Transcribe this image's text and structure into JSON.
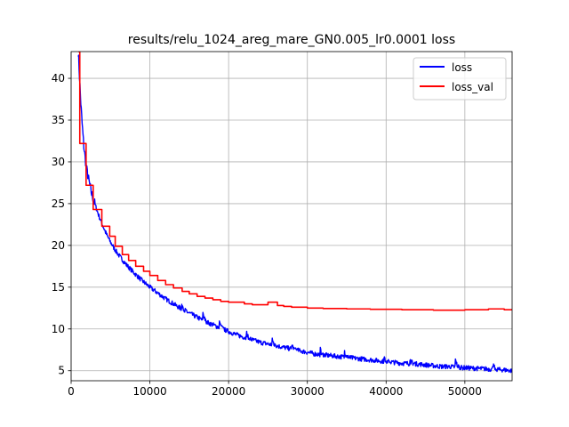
{
  "chart_data": {
    "type": "line",
    "title": "results/relu_1024_areg_mare_GN0.005_lr0.0001 loss",
    "xlabel": "",
    "ylabel": "",
    "xlim": [
      0,
      56000
    ],
    "ylim": [
      3.8,
      43.2
    ],
    "xticks": [
      0,
      10000,
      20000,
      30000,
      40000,
      50000
    ],
    "yticks": [
      5,
      10,
      15,
      20,
      25,
      30,
      35,
      40
    ],
    "grid": true,
    "legend_position": "upper right",
    "series": [
      {
        "name": "loss",
        "color": "#0000ff",
        "x": [
          900,
          1000,
          1200,
          1400,
          1600,
          1800,
          2000,
          2300,
          2600,
          3000,
          3500,
          4000,
          4500,
          5000,
          5500,
          6000,
          6500,
          7000,
          8000,
          9000,
          10000,
          11000,
          12000,
          13000,
          14000,
          15000,
          16000,
          17000,
          18000,
          19000,
          20000,
          21000,
          22000,
          23000,
          24000,
          25000,
          26000,
          27000,
          28000,
          29000,
          30000,
          31000,
          32000,
          33000,
          34000,
          35000,
          36000,
          37000,
          38000,
          39000,
          40000,
          41000,
          42000,
          43000,
          44000,
          45000,
          46000,
          47000,
          48000,
          49000,
          50000,
          51000,
          52000,
          53000,
          54000,
          55000,
          56000
        ],
        "y": [
          43.2,
          41.5,
          37.5,
          34.5,
          32.0,
          30.3,
          29.0,
          27.5,
          26.2,
          25.0,
          23.6,
          22.4,
          21.3,
          20.4,
          19.6,
          18.9,
          18.3,
          17.7,
          16.7,
          15.8,
          15.0,
          14.3,
          13.6,
          13.0,
          12.4,
          11.9,
          11.4,
          10.9,
          10.5,
          10.1,
          9.7,
          9.3,
          9.0,
          8.7,
          8.4,
          8.2,
          8.0,
          7.8,
          7.6,
          7.4,
          7.2,
          7.0,
          6.9,
          6.8,
          6.7,
          6.6,
          6.5,
          6.4,
          6.3,
          6.2,
          6.1,
          6.0,
          5.9,
          5.85,
          5.8,
          5.7,
          5.6,
          5.5,
          5.5,
          5.4,
          5.35,
          5.3,
          5.25,
          5.2,
          5.15,
          5.1,
          5.0
        ],
        "spikes": [
          {
            "x": 14000,
            "height": 1.0
          },
          {
            "x": 16700,
            "height": 1.3
          },
          {
            "x": 18800,
            "height": 1.0
          },
          {
            "x": 22200,
            "height": 1.1
          },
          {
            "x": 25500,
            "height": 1.0
          },
          {
            "x": 28000,
            "height": 0.7
          },
          {
            "x": 31600,
            "height": 0.9
          },
          {
            "x": 34700,
            "height": 1.0
          },
          {
            "x": 39700,
            "height": 0.8
          },
          {
            "x": 43000,
            "height": 0.9
          },
          {
            "x": 48800,
            "height": 1.1
          },
          {
            "x": 53500,
            "height": 1.0
          }
        ]
      },
      {
        "name": "loss_val",
        "color": "#ff0000",
        "x": [
          900,
          1100,
          1100,
          1900,
          1900,
          2300,
          2300,
          2800,
          2800,
          3100,
          3100,
          3900,
          3900,
          4900,
          4900,
          5600,
          5600,
          6500,
          6500,
          7300,
          7300,
          8200,
          8200,
          9200,
          9200,
          10000,
          10000,
          11000,
          11000,
          12000,
          12000,
          13000,
          13000,
          14100,
          14100,
          15000,
          15000,
          16000,
          16000,
          17000,
          17000,
          18000,
          18000,
          19000,
          19000,
          20000,
          20000,
          22000,
          22000,
          23000,
          23000,
          25000,
          25000,
          26200,
          26200,
          27000,
          27000,
          28000,
          28000,
          30000,
          30000,
          32000,
          32000,
          35000,
          35000,
          38000,
          38000,
          42000,
          42000,
          46000,
          46000,
          50000,
          50000,
          53000,
          53000,
          55000,
          55000,
          56000
        ],
        "y": [
          43.2,
          43.2,
          32.2,
          32.2,
          27.2,
          27.2,
          27.2,
          27.2,
          24.3,
          24.3,
          24.3,
          24.3,
          22.3,
          22.3,
          21.1,
          21.1,
          19.9,
          19.9,
          18.9,
          18.9,
          18.2,
          18.2,
          17.5,
          17.5,
          16.9,
          16.9,
          16.4,
          16.4,
          15.8,
          15.8,
          15.3,
          15.3,
          14.9,
          14.9,
          14.5,
          14.5,
          14.2,
          14.2,
          13.9,
          13.9,
          13.7,
          13.7,
          13.5,
          13.5,
          13.3,
          13.3,
          13.2,
          13.2,
          13.0,
          13.0,
          12.9,
          12.9,
          13.2,
          13.2,
          12.8,
          12.8,
          12.7,
          12.7,
          12.6,
          12.6,
          12.5,
          12.5,
          12.45,
          12.45,
          12.4,
          12.4,
          12.35,
          12.35,
          12.3,
          12.3,
          12.25,
          12.25,
          12.3,
          12.3,
          12.4,
          12.4,
          12.3,
          12.3
        ]
      }
    ]
  }
}
